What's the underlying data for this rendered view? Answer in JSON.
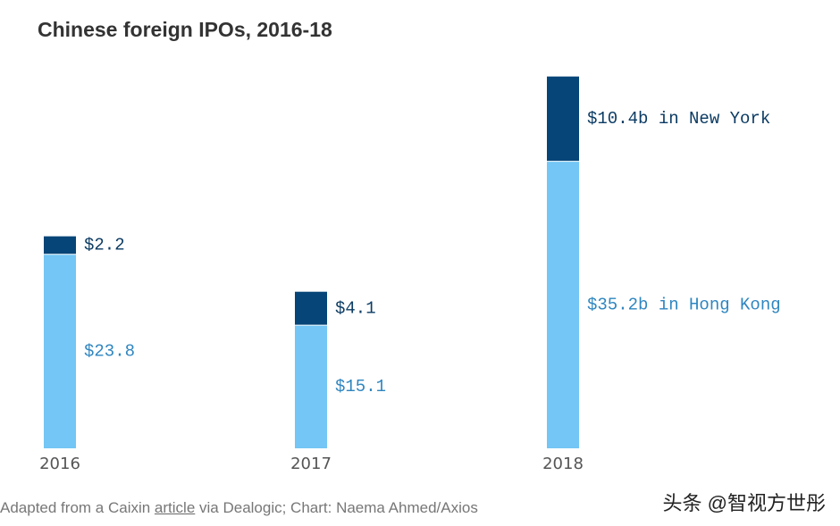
{
  "chart_data": {
    "type": "bar",
    "stacked": true,
    "title": "Chinese foreign IPOs, 2016-18",
    "categories": [
      "2016",
      "2017",
      "2018"
    ],
    "unit": "USD billions",
    "series": [
      {
        "name": "Hong Kong",
        "color": "#73c6f5",
        "label_color": "#2f86c0",
        "values": [
          23.8,
          15.1,
          35.2
        ],
        "labels": [
          "$23.8",
          "$15.1",
          "$35.2b in Hong Kong"
        ]
      },
      {
        "name": "New York",
        "color": "#064577",
        "label_color": "#0b3b63",
        "values": [
          2.2,
          4.1,
          10.4
        ],
        "labels": [
          "$2.2",
          "$4.1",
          "$10.4b in New York"
        ]
      }
    ],
    "ylim": [
      0,
      46.0
    ],
    "grid": false,
    "xlabel": "",
    "ylabel": ""
  },
  "footer": {
    "prefix": "Adapted from a Caixin ",
    "link_text": "article",
    "suffix": " via Dealogic; Chart: Naema Ahmed/Axios"
  },
  "watermark": "头条 @智视方世彤"
}
